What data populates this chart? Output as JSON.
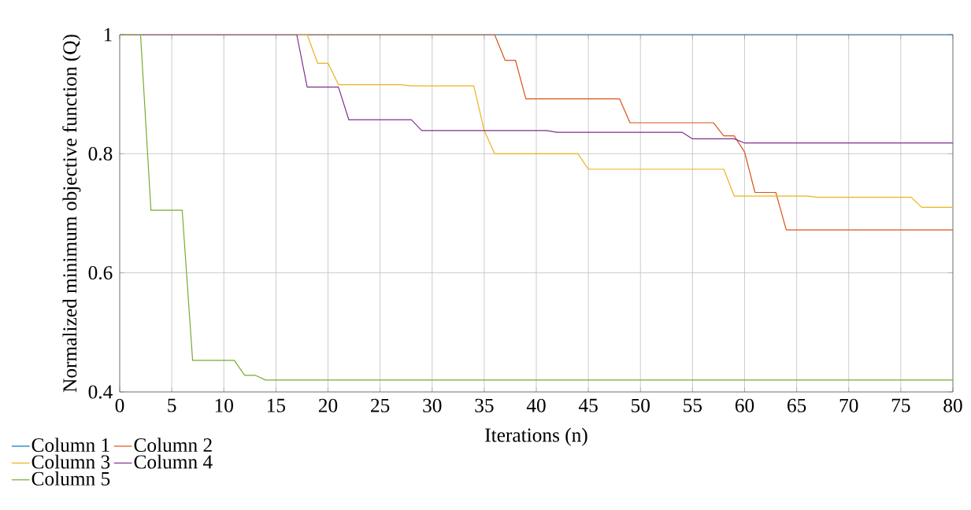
{
  "chart_data": {
    "type": "line",
    "xlabel": "Iterations (n)",
    "ylabel": "Normalized minimum objective function (Q)",
    "xlim": [
      0,
      80
    ],
    "ylim": [
      0.4,
      1
    ],
    "xticks": [
      0,
      5,
      10,
      15,
      20,
      25,
      30,
      35,
      40,
      45,
      50,
      55,
      60,
      65,
      70,
      75,
      80
    ],
    "yticks": [
      0.4,
      0.6,
      0.8,
      1
    ],
    "grid": true,
    "legend": "bottom left",
    "marker": "none",
    "line_style": "solid",
    "series": [
      {
        "name": "Column 1",
        "color": "#0072bd",
        "x": [
          0,
          80
        ],
        "values": [
          1,
          1
        ]
      },
      {
        "name": "Column 2",
        "color": "#d95319",
        "x": [
          0,
          36,
          37,
          38,
          39,
          48,
          49,
          57,
          58,
          59,
          60,
          61,
          63,
          64,
          80
        ],
        "values": [
          1,
          1,
          0.957,
          0.957,
          0.892,
          0.892,
          0.852,
          0.852,
          0.83,
          0.83,
          0.803,
          0.735,
          0.735,
          0.672,
          0.672
        ]
      },
      {
        "name": "Column 3",
        "color": "#edb120",
        "x": [
          0,
          18,
          19,
          20,
          21,
          27,
          28,
          34,
          35,
          36,
          44,
          45,
          58,
          59,
          66,
          67,
          76,
          77,
          80
        ],
        "values": [
          1,
          1,
          0.952,
          0.952,
          0.916,
          0.916,
          0.914,
          0.914,
          0.839,
          0.8,
          0.8,
          0.774,
          0.774,
          0.729,
          0.729,
          0.727,
          0.727,
          0.71,
          0.71
        ]
      },
      {
        "name": "Column 4",
        "color": "#7e2f8e",
        "x": [
          0,
          17,
          18,
          21,
          22,
          28,
          29,
          41,
          42,
          54,
          55,
          59,
          60,
          80
        ],
        "values": [
          1,
          1,
          0.912,
          0.912,
          0.857,
          0.857,
          0.839,
          0.839,
          0.836,
          0.836,
          0.825,
          0.825,
          0.818,
          0.818
        ]
      },
      {
        "name": "Column 5",
        "color": "#77ac30",
        "x": [
          0,
          2,
          3,
          6,
          7,
          11,
          12,
          13,
          14,
          80
        ],
        "values": [
          1,
          1,
          0.705,
          0.705,
          0.453,
          0.453,
          0.428,
          0.428,
          0.42,
          0.42
        ]
      }
    ]
  }
}
